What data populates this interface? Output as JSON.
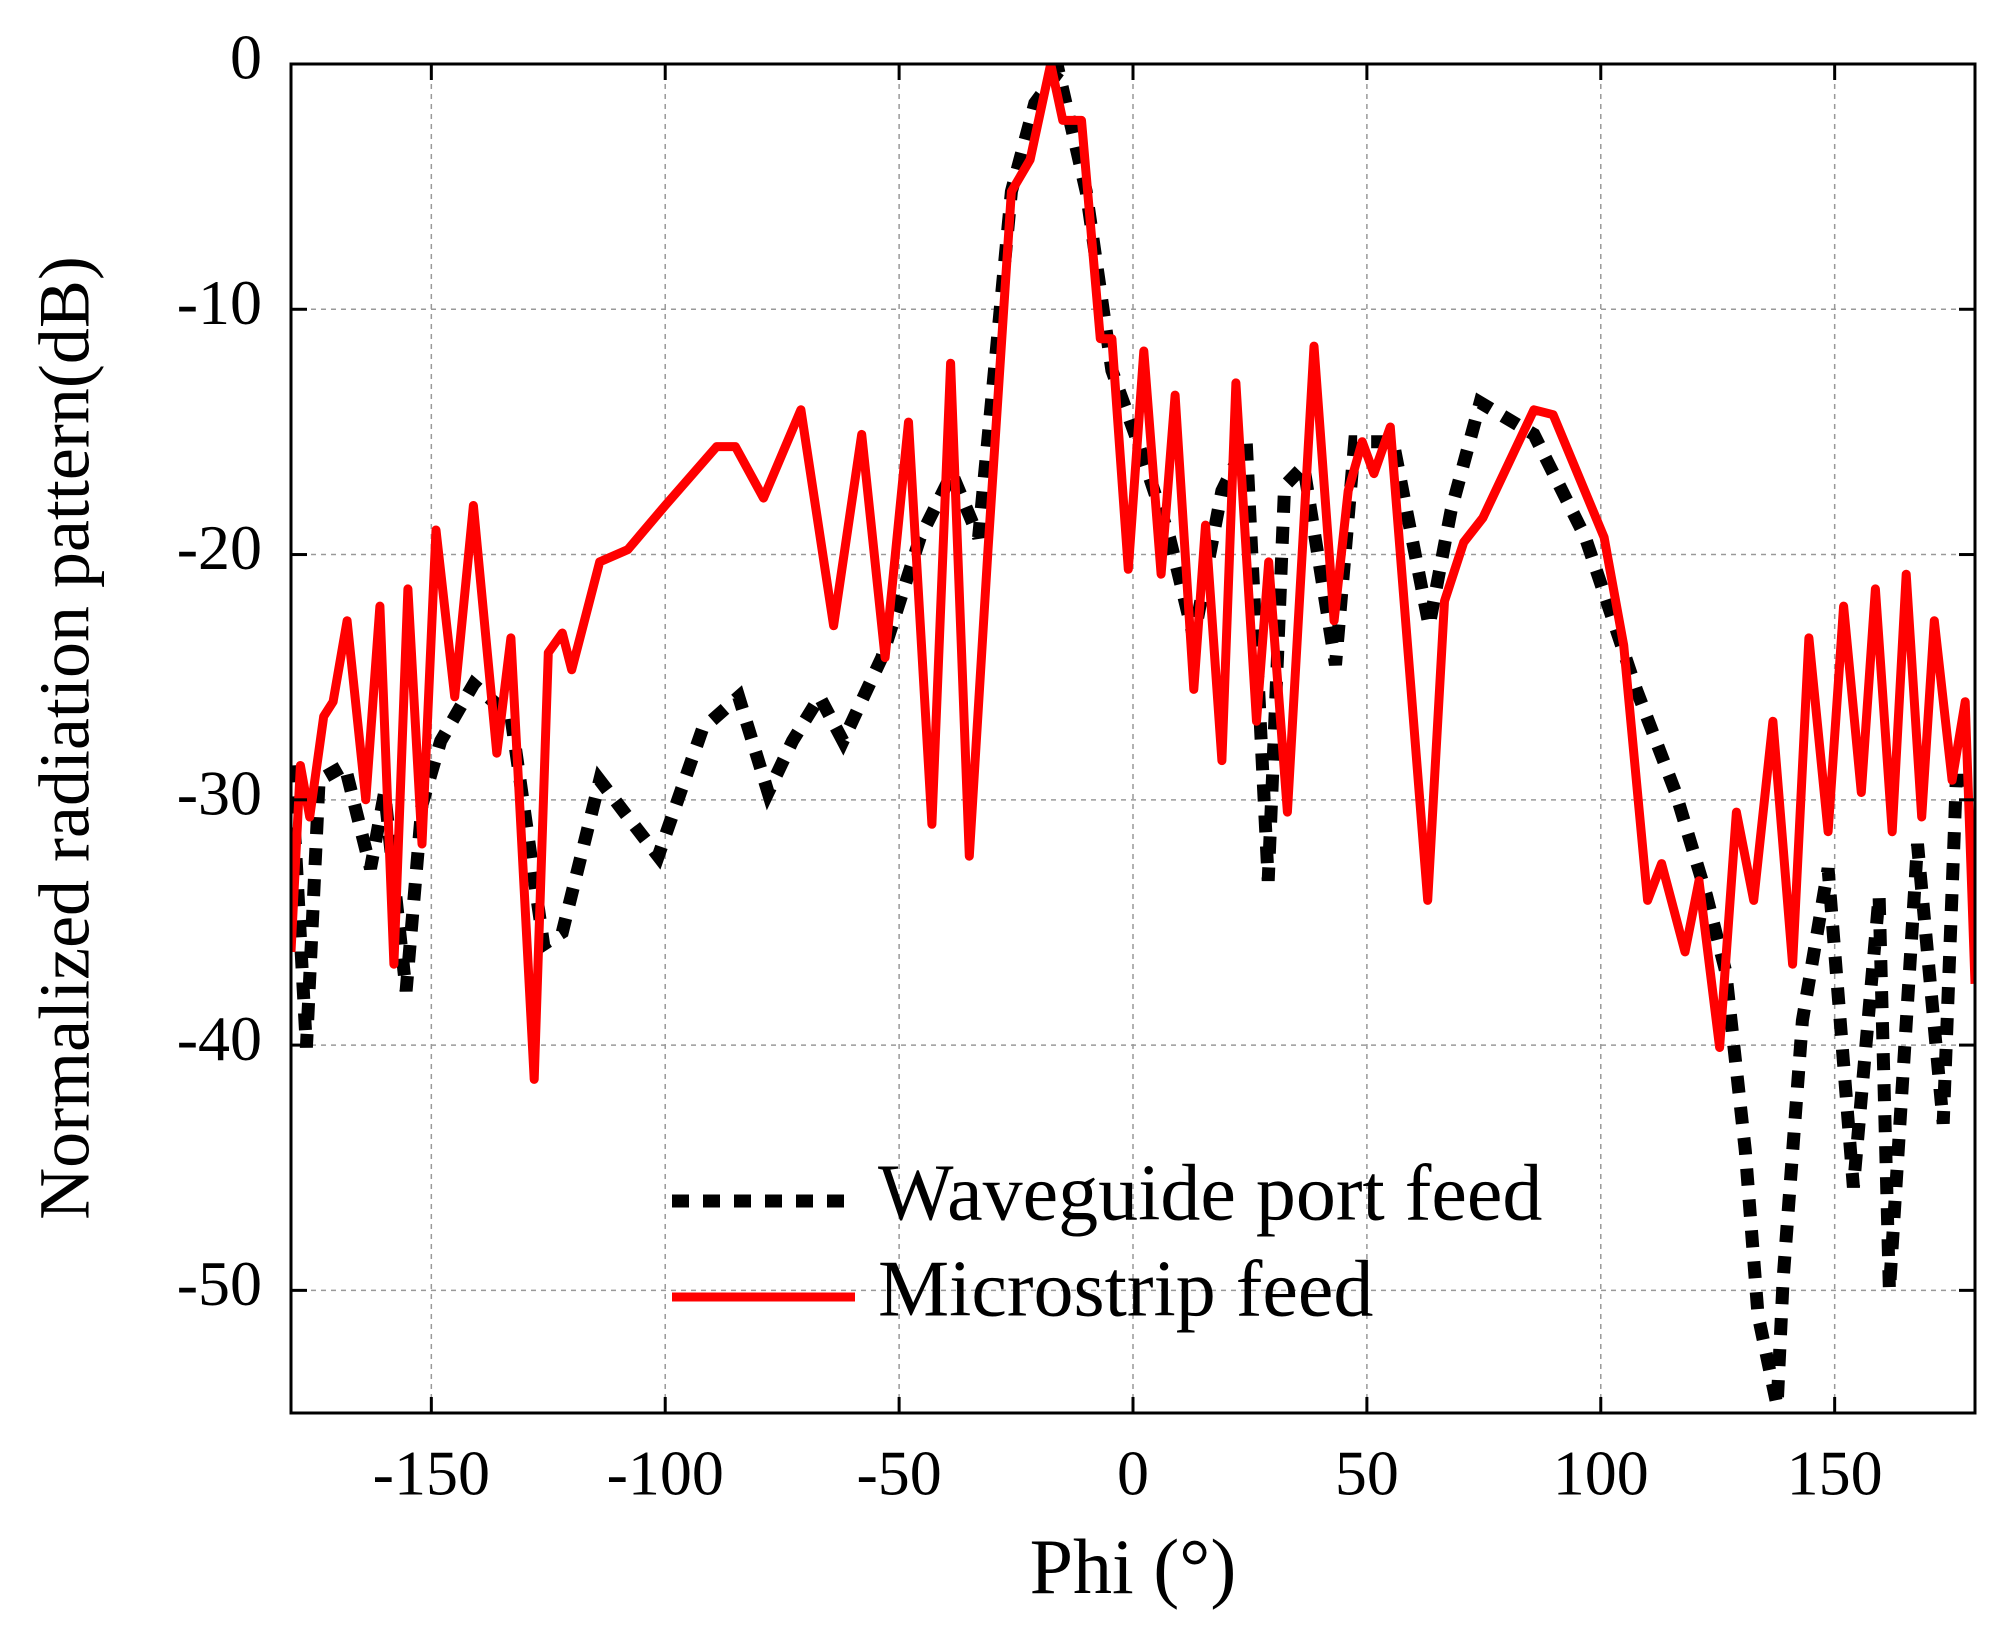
{
  "chart_data": {
    "type": "line",
    "x_label": "Phi (°)",
    "y_label": "Normalized radiation pattern(dB)",
    "xlim": [
      -180,
      180
    ],
    "ylim": [
      -55,
      0
    ],
    "xticks": [
      -150,
      -100,
      -50,
      0,
      50,
      100,
      150
    ],
    "yticks": [
      0,
      -10,
      -20,
      -30,
      -40,
      -50
    ],
    "grid": true,
    "legend": "lower center",
    "series": [
      {
        "name": "Waveguide port feed",
        "color": "#000000",
        "style": "dotted",
        "x": [
          -180,
          -176.7,
          -174,
          -168.5,
          -163,
          -160,
          -155.4,
          -152,
          -148,
          -141,
          -133,
          -126,
          -122,
          -114,
          -108,
          -101.5,
          -92,
          -84.3,
          -78,
          -72.8,
          -67,
          -62,
          -53.7,
          -45.5,
          -38.7,
          -33,
          -26,
          -21,
          -15.9,
          -10,
          -4.5,
          1,
          7.8,
          13,
          19,
          24.2,
          28.9,
          32.4,
          36.5,
          43.3,
          47.4,
          55.6,
          63.3,
          68,
          74.2,
          85.7,
          96.7,
          107.6,
          116,
          122.6,
          126.7,
          130.9,
          133.6,
          137.7,
          139,
          143.1,
          148.6,
          154,
          159.5,
          161.7,
          167.7,
          173.2,
          176,
          180
        ],
        "values": [
          -28.6,
          -40.1,
          -29.2,
          -28.6,
          -32.8,
          -29.7,
          -37.8,
          -30.2,
          -27.6,
          -25.3,
          -26.6,
          -35.9,
          -35.4,
          -29.2,
          -30.7,
          -32.3,
          -27.1,
          -25.8,
          -29.7,
          -27.6,
          -25.8,
          -27.6,
          -24.2,
          -19.3,
          -16.7,
          -19.3,
          -5.2,
          -1.6,
          -0.3,
          -5.2,
          -12.5,
          -15.4,
          -19.3,
          -23.4,
          -17.4,
          -15.4,
          -33.3,
          -17.2,
          -16.4,
          -24.5,
          -15.4,
          -15.4,
          -22.9,
          -18.2,
          -13.8,
          -15.1,
          -19.3,
          -25.5,
          -29.7,
          -33.9,
          -37,
          -44.3,
          -51,
          -54.7,
          -49.5,
          -39,
          -32.8,
          -45.8,
          -33.9,
          -50,
          -31.8,
          -43.2,
          -29.2,
          -29.2
        ]
      },
      {
        "name": "Microstrip feed",
        "color": "#ff0000",
        "style": "solid",
        "x": [
          -180,
          -178,
          -176,
          -173,
          -171,
          -168,
          -164,
          -161,
          -158,
          -155,
          -152,
          -149,
          -145,
          -141,
          -136,
          -133,
          -128,
          -125,
          -122,
          -120,
          -114,
          -108,
          -100,
          -89,
          -85,
          -79,
          -71,
          -64,
          -58,
          -53,
          -48,
          -43,
          -39,
          -35,
          -31,
          -26,
          -22,
          -17.6,
          -15,
          -11,
          -7,
          -4.5,
          -1,
          2.3,
          6,
          9,
          13,
          15.5,
          19,
          22,
          26.4,
          29,
          33,
          38.7,
          43,
          46,
          49,
          51.5,
          55,
          63,
          66.6,
          70.7,
          74.8,
          85.7,
          89.8,
          100.7,
          104.9,
          110,
          113,
          118,
          121,
          125.4,
          129,
          132.7,
          136.8,
          141,
          144.5,
          148.6,
          151.9,
          155.7,
          158.7,
          162.3,
          165.3,
          168.6,
          171.3,
          175.1,
          177.9,
          180
        ],
        "values": [
          -36.2,
          -28.6,
          -30.7,
          -26.6,
          -26,
          -22.7,
          -30,
          -22.1,
          -36.7,
          -21.4,
          -31.8,
          -19,
          -25.8,
          -18,
          -28.1,
          -23.4,
          -41.4,
          -24,
          -23.2,
          -24.7,
          -20.3,
          -19.8,
          -18,
          -15.6,
          -15.6,
          -17.7,
          -14.1,
          -22.9,
          -15.1,
          -24.2,
          -14.6,
          -31,
          -12.2,
          -32.3,
          -19.8,
          -5.2,
          -3.9,
          0,
          -2.3,
          -2.3,
          -11.2,
          -11.2,
          -20.6,
          -11.7,
          -20.8,
          -13.5,
          -25.5,
          -18.8,
          -28.4,
          -13,
          -26.8,
          -20.3,
          -30.5,
          -11.5,
          -22.7,
          -17.4,
          -15.4,
          -16.7,
          -14.8,
          -34.1,
          -21.9,
          -19.5,
          -18.5,
          -14.1,
          -14.3,
          -19.3,
          -23.7,
          -34.1,
          -32.6,
          -36.2,
          -33.3,
          -40.1,
          -30.5,
          -34.1,
          -26.8,
          -36.7,
          -23.4,
          -31.3,
          -22.1,
          -29.7,
          -21.4,
          -31.3,
          -20.8,
          -30.7,
          -22.7,
          -29.2,
          -26,
          -37.5
        ]
      }
    ]
  }
}
